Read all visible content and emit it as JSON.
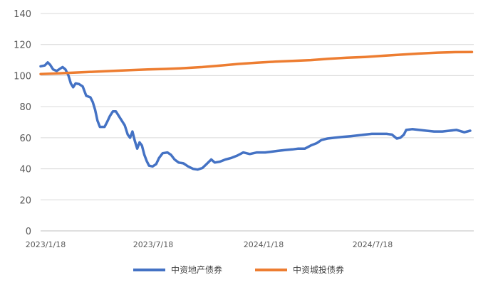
{
  "chart_data": {
    "type": "line",
    "title": "",
    "xlabel": "",
    "ylabel": "",
    "ylim": [
      0,
      140
    ],
    "yticks": [
      0,
      20,
      40,
      60,
      80,
      100,
      120,
      140
    ],
    "x_tick_labels": [
      "2023/1/18",
      "2023/7/18",
      "2024/1/18",
      "2024/7/18"
    ],
    "x_range": [
      "2023-01-18",
      "2025-01-18"
    ],
    "grid": "horizontal",
    "legend_position": "bottom",
    "series": [
      {
        "name": "中资地产债券",
        "color": "#4472C4",
        "points": [
          [
            "2023-01-18",
            106
          ],
          [
            "2023-01-25",
            106.5
          ],
          [
            "2023-01-30",
            108.5
          ],
          [
            "2023-02-03",
            107
          ],
          [
            "2023-02-08",
            104
          ],
          [
            "2023-02-14",
            103
          ],
          [
            "2023-02-18",
            104
          ],
          [
            "2023-02-24",
            105.5
          ],
          [
            "2023-03-01",
            104
          ],
          [
            "2023-03-06",
            100
          ],
          [
            "2023-03-10",
            95
          ],
          [
            "2023-03-14",
            92.5
          ],
          [
            "2023-03-18",
            95
          ],
          [
            "2023-03-24",
            94.5
          ],
          [
            "2023-03-30",
            93
          ],
          [
            "2023-04-05",
            87
          ],
          [
            "2023-04-12",
            86
          ],
          [
            "2023-04-16",
            83
          ],
          [
            "2023-04-20",
            78
          ],
          [
            "2023-04-24",
            71
          ],
          [
            "2023-04-28",
            67
          ],
          [
            "2023-05-06",
            67
          ],
          [
            "2023-05-10",
            70
          ],
          [
            "2023-05-15",
            74
          ],
          [
            "2023-05-20",
            77
          ],
          [
            "2023-05-25",
            77
          ],
          [
            "2023-05-30",
            74
          ],
          [
            "2023-06-04",
            71
          ],
          [
            "2023-06-09",
            68
          ],
          [
            "2023-06-14",
            62
          ],
          [
            "2023-06-18",
            60
          ],
          [
            "2023-06-22",
            64
          ],
          [
            "2023-06-26",
            58
          ],
          [
            "2023-06-30",
            53
          ],
          [
            "2023-07-04",
            57
          ],
          [
            "2023-07-08",
            55
          ],
          [
            "2023-07-12",
            49
          ],
          [
            "2023-07-16",
            45
          ],
          [
            "2023-07-20",
            42
          ],
          [
            "2023-07-26",
            41.5
          ],
          [
            "2023-08-01",
            43
          ],
          [
            "2023-08-06",
            47
          ],
          [
            "2023-08-12",
            50
          ],
          [
            "2023-08-20",
            50.5
          ],
          [
            "2023-08-26",
            49
          ],
          [
            "2023-09-01",
            46
          ],
          [
            "2023-09-08",
            44
          ],
          [
            "2023-09-16",
            43.5
          ],
          [
            "2023-09-24",
            41.5
          ],
          [
            "2023-10-02",
            40
          ],
          [
            "2023-10-10",
            39.5
          ],
          [
            "2023-10-18",
            40.5
          ],
          [
            "2023-10-25",
            43
          ],
          [
            "2023-11-02",
            46
          ],
          [
            "2023-11-08",
            44
          ],
          [
            "2023-11-16",
            44.5
          ],
          [
            "2023-11-26",
            46
          ],
          [
            "2023-12-06",
            47
          ],
          [
            "2023-12-16",
            48.5
          ],
          [
            "2023-12-26",
            50.5
          ],
          [
            "2024-01-06",
            49.5
          ],
          [
            "2024-01-18",
            50.5
          ],
          [
            "2024-02-01",
            50.5
          ],
          [
            "2024-02-12",
            51
          ],
          [
            "2024-02-22",
            51.5
          ],
          [
            "2024-03-05",
            52
          ],
          [
            "2024-03-18",
            52.5
          ],
          [
            "2024-03-28",
            53
          ],
          [
            "2024-04-08",
            53
          ],
          [
            "2024-04-18",
            55
          ],
          [
            "2024-04-28",
            56.5
          ],
          [
            "2024-05-06",
            58.5
          ],
          [
            "2024-05-16",
            59.5
          ],
          [
            "2024-05-28",
            60
          ],
          [
            "2024-06-10",
            60.5
          ],
          [
            "2024-06-24",
            61
          ],
          [
            "2024-07-06",
            61.5
          ],
          [
            "2024-07-18",
            62
          ],
          [
            "2024-07-30",
            62.5
          ],
          [
            "2024-08-12",
            62.5
          ],
          [
            "2024-08-24",
            62.5
          ],
          [
            "2024-09-02",
            62
          ],
          [
            "2024-09-10",
            59.5
          ],
          [
            "2024-09-16",
            60
          ],
          [
            "2024-09-22",
            62
          ],
          [
            "2024-09-26",
            65
          ],
          [
            "2024-10-06",
            65.5
          ],
          [
            "2024-10-18",
            65
          ],
          [
            "2024-10-30",
            64.5
          ],
          [
            "2024-11-12",
            64
          ],
          [
            "2024-11-26",
            64
          ],
          [
            "2024-12-08",
            64.5
          ],
          [
            "2024-12-20",
            65
          ],
          [
            "2025-01-02",
            63.5
          ],
          [
            "2025-01-12",
            64.5
          ]
        ]
      },
      {
        "name": "中资城投债券",
        "color": "#ED7D31",
        "points": [
          [
            "2023-01-18",
            101
          ],
          [
            "2023-02-18",
            101.5
          ],
          [
            "2023-03-18",
            102
          ],
          [
            "2023-04-18",
            102.5
          ],
          [
            "2023-05-18",
            103
          ],
          [
            "2023-06-18",
            103.5
          ],
          [
            "2023-07-18",
            104
          ],
          [
            "2023-08-18",
            104.3
          ],
          [
            "2023-09-18",
            104.8
          ],
          [
            "2023-10-18",
            105.5
          ],
          [
            "2023-11-18",
            106.5
          ],
          [
            "2023-12-18",
            107.5
          ],
          [
            "2024-01-18",
            108.3
          ],
          [
            "2024-02-18",
            109
          ],
          [
            "2024-03-18",
            109.5
          ],
          [
            "2024-04-18",
            110
          ],
          [
            "2024-05-18",
            110.8
          ],
          [
            "2024-06-18",
            111.5
          ],
          [
            "2024-07-18",
            112
          ],
          [
            "2024-08-18",
            112.8
          ],
          [
            "2024-09-18",
            113.5
          ],
          [
            "2024-10-18",
            114.2
          ],
          [
            "2024-11-18",
            114.8
          ],
          [
            "2024-12-18",
            115.1
          ],
          [
            "2025-01-15",
            115.2
          ]
        ]
      }
    ]
  }
}
